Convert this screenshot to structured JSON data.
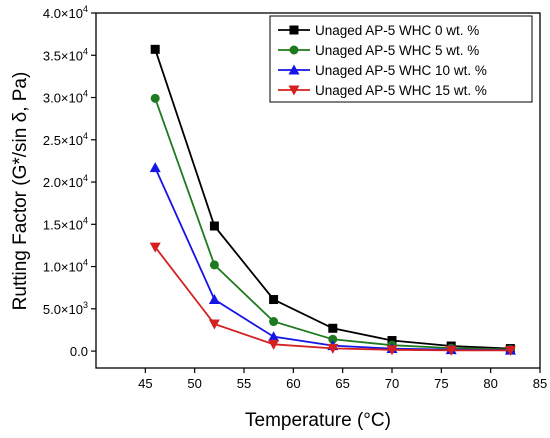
{
  "chart_data": {
    "type": "line",
    "xlabel": "Temperature (°C)",
    "ylabel": "Rutting Factor (G*/sin δ, Pa)",
    "xlim": [
      40,
      85
    ],
    "ylim": [
      -2000,
      40000
    ],
    "x_ticks": [
      45,
      50,
      55,
      60,
      65,
      70,
      75,
      80,
      85
    ],
    "y_ticks": [
      {
        "value": 0,
        "mantissa": "0.0",
        "exp": ""
      },
      {
        "value": 5000,
        "mantissa": "5.0×10",
        "exp": "3"
      },
      {
        "value": 10000,
        "mantissa": "1.0×10",
        "exp": "4"
      },
      {
        "value": 15000,
        "mantissa": "1.5×10",
        "exp": "4"
      },
      {
        "value": 20000,
        "mantissa": "2.0×10",
        "exp": "4"
      },
      {
        "value": 25000,
        "mantissa": "2.5×10",
        "exp": "4"
      },
      {
        "value": 30000,
        "mantissa": "3.0×10",
        "exp": "4"
      },
      {
        "value": 35000,
        "mantissa": "3.5×10",
        "exp": "4"
      },
      {
        "value": 40000,
        "mantissa": "4.0×10",
        "exp": "4"
      }
    ],
    "grid": false,
    "legend_position": "top-right",
    "x": [
      46,
      52,
      58,
      64,
      70,
      76,
      82
    ],
    "series": [
      {
        "name": "Unaged AP-5 WHC 0 wt. %",
        "marker": "square",
        "color": "#000000",
        "values": [
          35700,
          14800,
          6100,
          2700,
          1250,
          600,
          300
        ]
      },
      {
        "name": "Unaged AP-5 WHC 5 wt. %",
        "marker": "circle",
        "color": "#1e7a1e",
        "values": [
          29900,
          10200,
          3500,
          1400,
          700,
          350,
          200
        ]
      },
      {
        "name": "Unaged AP-5 WHC 10 wt. %",
        "marker": "triangle-up",
        "color": "#1515e6",
        "values": [
          21700,
          6100,
          1700,
          650,
          300,
          180,
          110
        ]
      },
      {
        "name": "Unaged AP-5 WHC 15 wt. %",
        "marker": "triangle-down",
        "color": "#d42020",
        "values": [
          12300,
          3200,
          800,
          320,
          150,
          100,
          80
        ]
      }
    ]
  }
}
